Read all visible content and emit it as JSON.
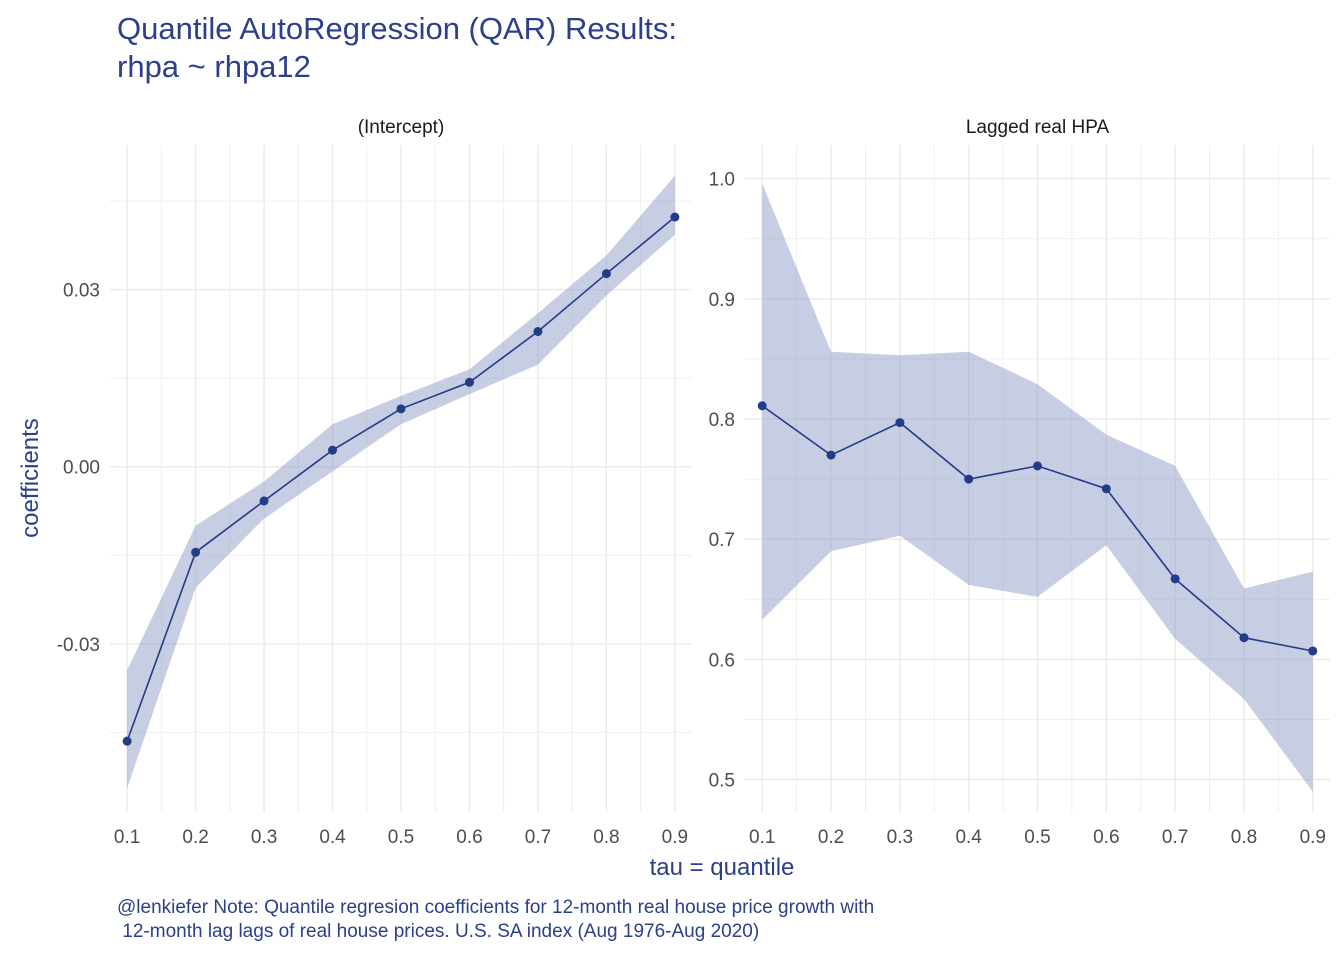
{
  "title": "Quantile AutoRegression (QAR) Results:\nrhpa ~ rhpa12",
  "caption": "@lenkiefer Note: Quantile regresion coefficients for 12-month real house price growth with\n 12-month lag lags of real house prices. U.S. SA index (Aug 1976-Aug 2020)",
  "colors": {
    "line": "#233c88",
    "ribbon": "#8a99c5",
    "grid": "#ebebeb",
    "text": "#2b3f8a"
  },
  "chart_data": {
    "type": "line",
    "xlabel": "tau = quantile",
    "ylabel": "coefficients",
    "x": [
      0.1,
      0.2,
      0.3,
      0.4,
      0.5,
      0.6,
      0.7,
      0.8,
      0.9
    ],
    "x_ticks": [
      "0.1",
      "0.2",
      "0.3",
      "0.4",
      "0.5",
      "0.6",
      "0.7",
      "0.8",
      "0.9"
    ],
    "grid": true,
    "panels": [
      {
        "strip": "(Intercept)",
        "ylim": [
          -0.0585,
          0.0545
        ],
        "y_ticks": [
          -0.03,
          0.0,
          0.03
        ],
        "y_tick_labels": [
          "-0.03",
          "0.00",
          "0.03"
        ],
        "values": [
          -0.0465,
          -0.0145,
          -0.0058,
          0.0028,
          0.0098,
          0.0143,
          0.0229,
          0.0327,
          0.0423
        ],
        "lower": [
          -0.0545,
          -0.0205,
          -0.0088,
          -0.0008,
          0.0072,
          0.0123,
          0.0173,
          0.029,
          0.0393
        ],
        "upper": [
          -0.0345,
          -0.01,
          -0.0025,
          0.0072,
          0.012,
          0.0165,
          0.026,
          0.0358,
          0.0493
        ]
      },
      {
        "strip": "Lagged real HPA",
        "ylim": [
          0.473,
          1.028
        ],
        "y_ticks": [
          0.5,
          0.6,
          0.7,
          0.8,
          0.9,
          1.0
        ],
        "y_tick_labels": [
          "0.5",
          "0.6",
          "0.7",
          "0.8",
          "0.9",
          "1.0"
        ],
        "values": [
          0.811,
          0.77,
          0.797,
          0.75,
          0.761,
          0.742,
          0.667,
          0.618,
          0.607
        ],
        "lower": [
          0.633,
          0.69,
          0.703,
          0.662,
          0.652,
          0.695,
          0.617,
          0.567,
          0.49
        ],
        "upper": [
          0.996,
          0.856,
          0.853,
          0.856,
          0.829,
          0.787,
          0.761,
          0.659,
          0.673
        ]
      }
    ]
  }
}
